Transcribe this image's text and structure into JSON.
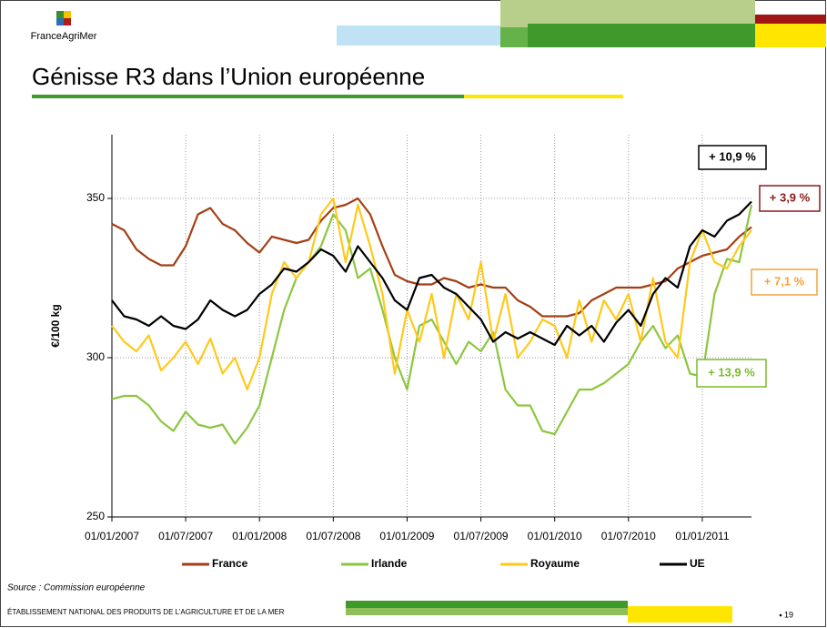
{
  "slide": {
    "logo": "FranceAgriMer",
    "title": "Génisse R3 dans l’Union européenne",
    "source": "Source : Commission européenne",
    "footer": "ÉTABLISSEMENT NATIONAL DES PRODUITS DE L’AGRICULTURE ET DE LA MER",
    "page": 19
  },
  "chart_data": {
    "type": "line",
    "ylabel": "€/100 kg",
    "x": [
      "01/01/2007",
      "01/02/2007",
      "01/03/2007",
      "01/04/2007",
      "01/05/2007",
      "01/06/2007",
      "01/07/2007",
      "01/08/2007",
      "01/09/2007",
      "01/10/2007",
      "01/11/2007",
      "01/12/2007",
      "01/01/2008",
      "01/02/2008",
      "01/03/2008",
      "01/04/2008",
      "01/05/2008",
      "01/06/2008",
      "01/07/2008",
      "01/08/2008",
      "01/09/2008",
      "01/10/2008",
      "01/11/2008",
      "01/12/2008",
      "01/01/2009",
      "01/02/2009",
      "01/03/2009",
      "01/04/2009",
      "01/05/2009",
      "01/06/2009",
      "01/07/2009",
      "01/08/2009",
      "01/09/2009",
      "01/10/2009",
      "01/11/2009",
      "01/12/2009",
      "01/01/2010",
      "01/02/2010",
      "01/03/2010",
      "01/04/2010",
      "01/05/2010",
      "01/06/2010",
      "01/07/2010",
      "01/08/2010",
      "01/09/2010",
      "01/10/2010",
      "01/11/2010",
      "01/12/2010",
      "01/01/2011",
      "01/02/2011",
      "01/03/2011",
      "01/04/2011",
      "01/05/2011"
    ],
    "series": [
      {
        "name": "France",
        "color": "#a33f15",
        "values": [
          342,
          340,
          334,
          331,
          329,
          329,
          335,
          345,
          347,
          342,
          340,
          336,
          333,
          338,
          337,
          336,
          337,
          343,
          347,
          348,
          350,
          345,
          335,
          326,
          324,
          323,
          323,
          325,
          324,
          322,
          323,
          322,
          322,
          318,
          316,
          313,
          313,
          313,
          314,
          318,
          320,
          322,
          322,
          322,
          323,
          324,
          328,
          330,
          332,
          333,
          334,
          338,
          341
        ]
      },
      {
        "name": "Irlande",
        "color": "#8dc63f",
        "values": [
          287,
          288,
          288,
          285,
          280,
          277,
          283,
          279,
          278,
          279,
          273,
          278,
          285,
          300,
          315,
          325,
          330,
          335,
          345,
          340,
          325,
          328,
          315,
          300,
          290,
          310,
          312,
          305,
          298,
          305,
          302,
          308,
          290,
          285,
          285,
          277,
          276,
          283,
          290,
          290,
          292,
          295,
          298,
          305,
          310,
          303,
          307,
          295,
          294,
          320,
          331,
          330,
          348
        ]
      },
      {
        "name": "Royaume",
        "color": "#ffc91a",
        "values": [
          310,
          305,
          302,
          307,
          296,
          300,
          305,
          298,
          306,
          295,
          300,
          290,
          300,
          320,
          330,
          325,
          330,
          345,
          350,
          330,
          348,
          335,
          320,
          295,
          315,
          305,
          320,
          300,
          320,
          312,
          330,
          305,
          320,
          300,
          305,
          312,
          310,
          300,
          318,
          305,
          318,
          312,
          320,
          305,
          325,
          305,
          300,
          330,
          340,
          330,
          328,
          335,
          340
        ]
      },
      {
        "name": "UE",
        "color": "#000000",
        "values": [
          318,
          313,
          312,
          310,
          313,
          310,
          309,
          312,
          318,
          315,
          313,
          315,
          320,
          323,
          328,
          327,
          330,
          334,
          332,
          327,
          335,
          330,
          325,
          318,
          315,
          325,
          326,
          322,
          320,
          316,
          312,
          305,
          308,
          306,
          308,
          306,
          304,
          310,
          307,
          310,
          305,
          311,
          315,
          310,
          320,
          325,
          322,
          335,
          340,
          338,
          343,
          345,
          349
        ]
      }
    ],
    "xlim": [
      "01/01/2007",
      "01/05/2011"
    ],
    "xticks": [
      "01/01/2007",
      "01/07/2007",
      "01/01/2008",
      "01/07/2008",
      "01/01/2009",
      "01/07/2009",
      "01/01/2010",
      "01/07/2010",
      "01/01/2011"
    ],
    "ylim": [
      250,
      370
    ],
    "yticks": [
      250,
      300,
      350
    ],
    "grid": true,
    "legend": "bottom",
    "annotations": [
      {
        "text": "+ 10,9 %",
        "color": "#000000"
      },
      {
        "text": "+ 3,9 %",
        "color": "#8b1a1a"
      },
      {
        "text": "+ 7,1 %",
        "color": "#f7a23a"
      },
      {
        "text": "+ 13,9 %",
        "color": "#7cbb2d"
      }
    ]
  }
}
